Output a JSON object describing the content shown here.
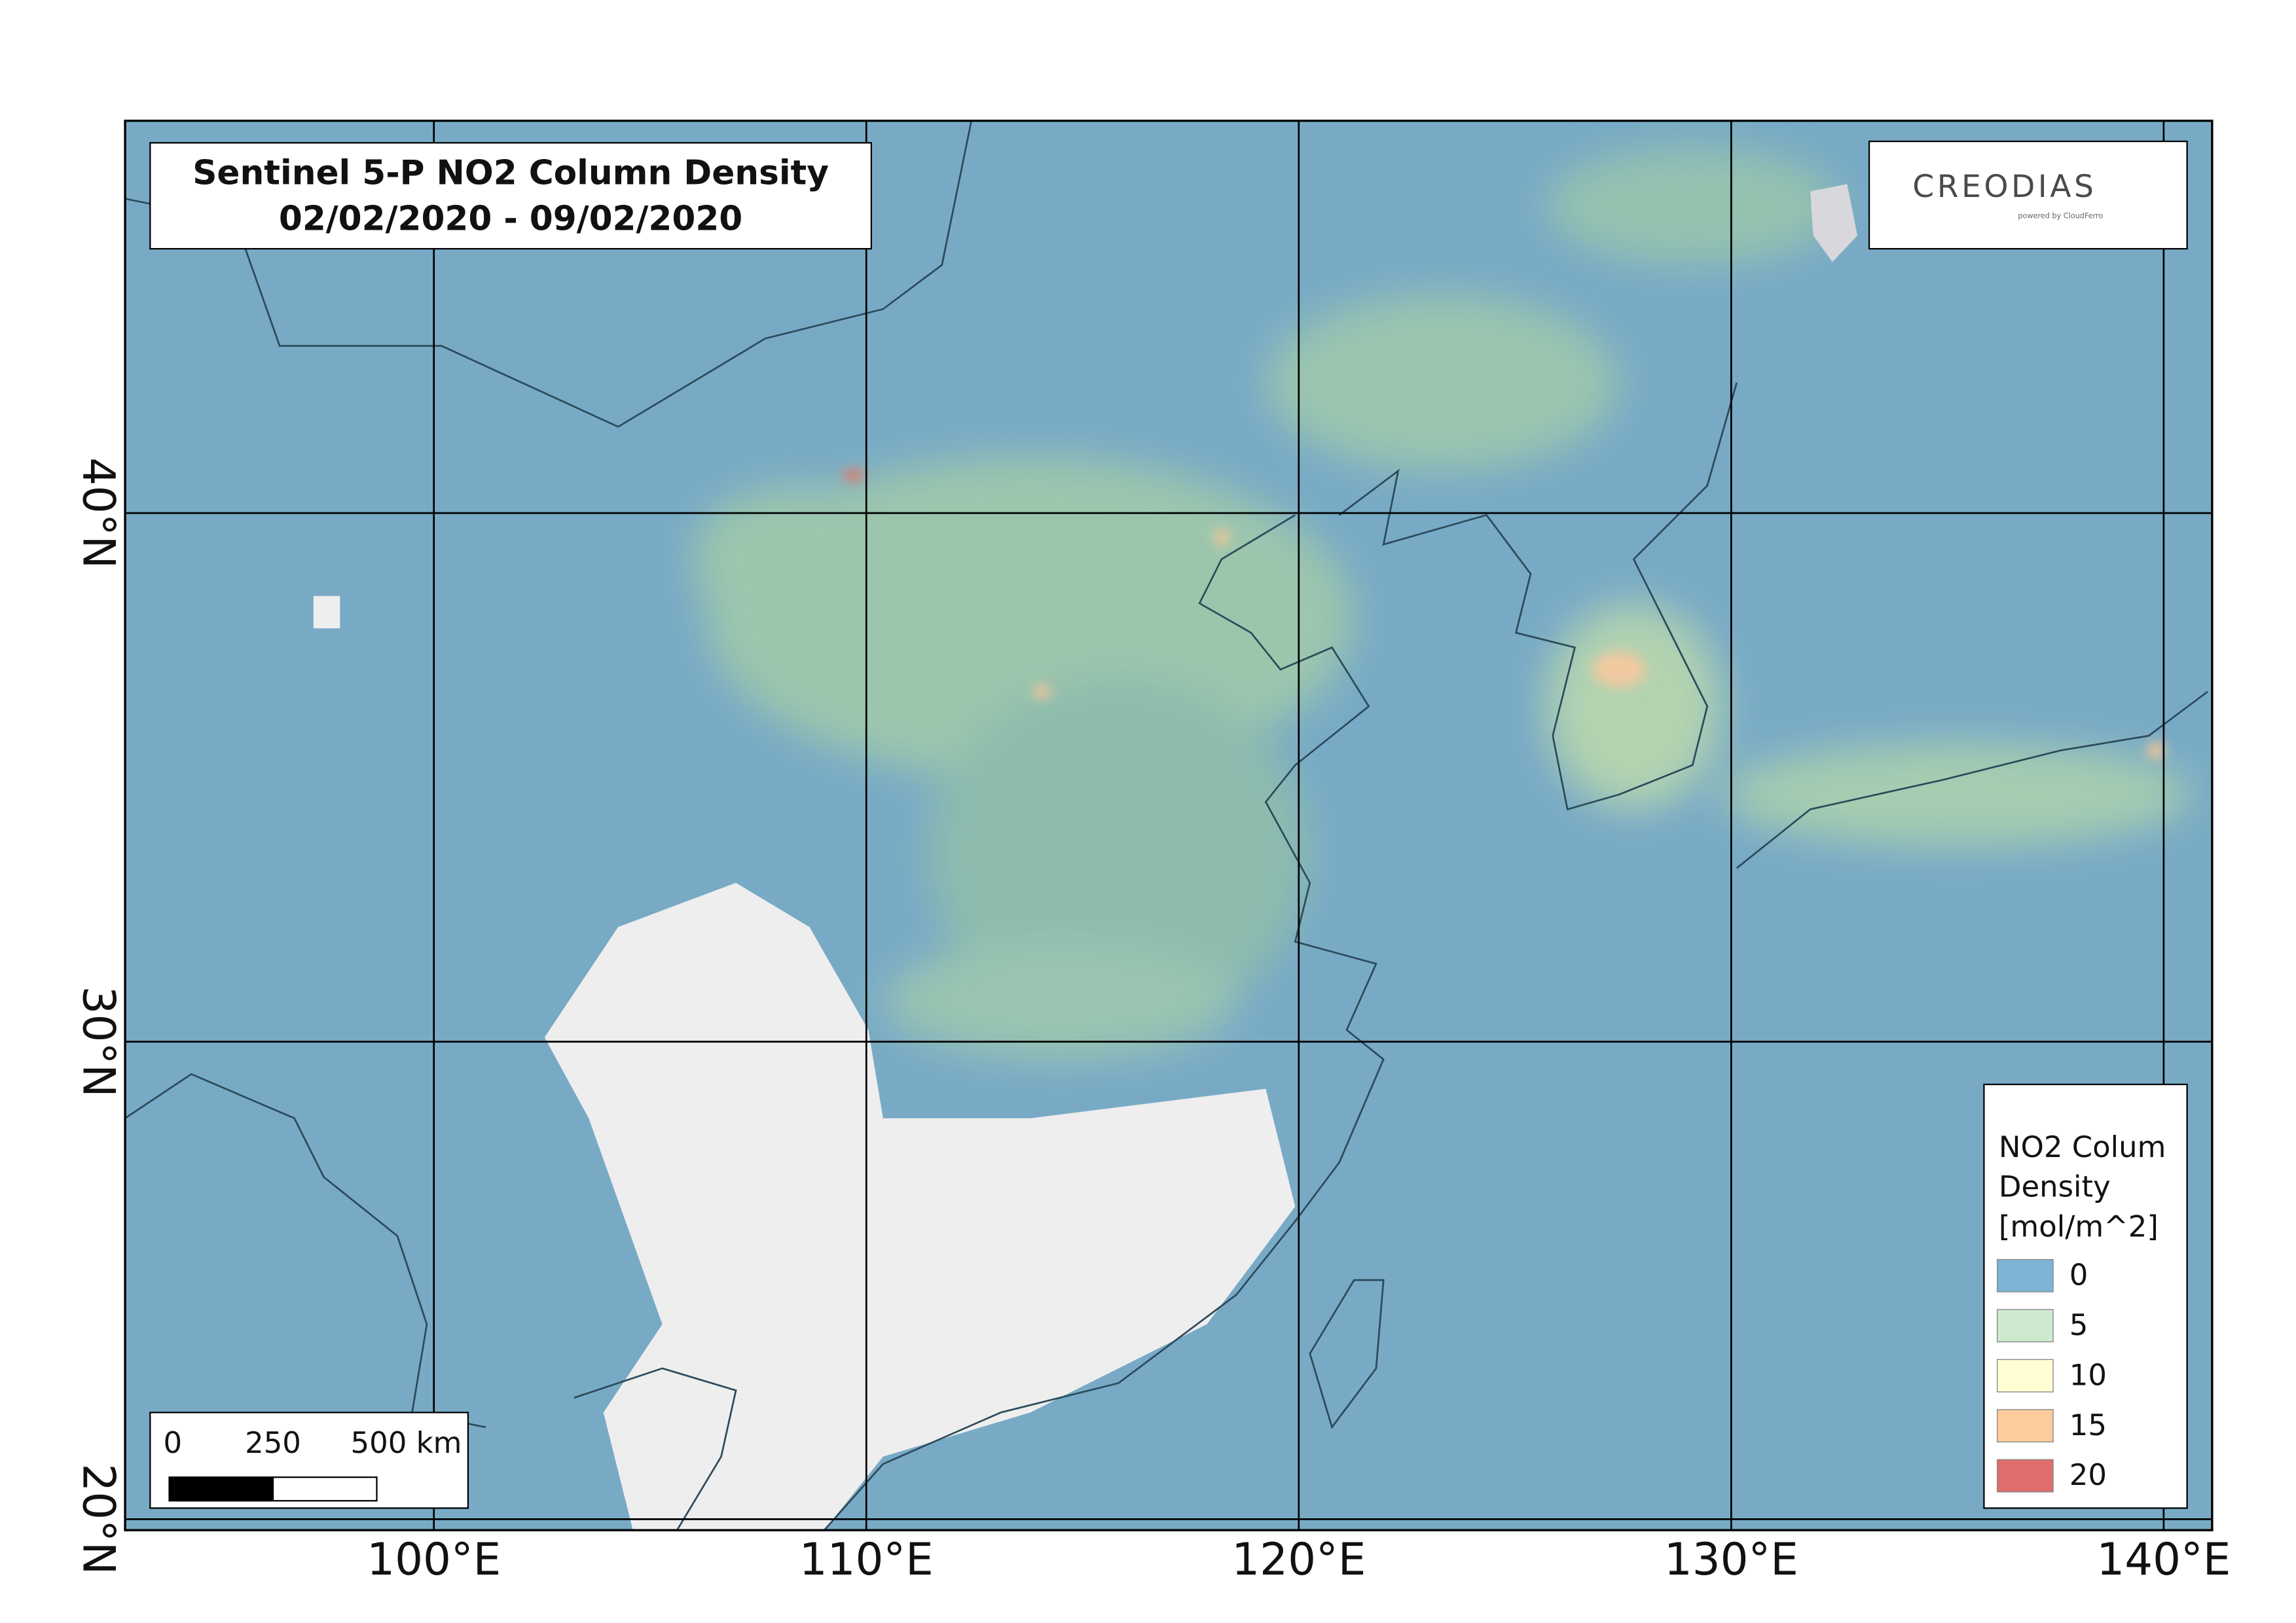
{
  "map": {
    "title": [
      "Sentinel 5-P NO2 Column Density",
      "02/02/2020 - 09/02/2020"
    ],
    "logo": {
      "name": "CREODIAS",
      "tagline": "powered by CloudFerro"
    },
    "xlim": [
      92.86,
      141.12
    ],
    "ylim": [
      19.76,
      46.6
    ],
    "xticks": [
      {
        "value": 100,
        "label": "100°E"
      },
      {
        "value": 110,
        "label": "110°E"
      },
      {
        "value": 120,
        "label": "120°E"
      },
      {
        "value": 130,
        "label": "130°E"
      },
      {
        "value": 140,
        "label": "140°E"
      }
    ],
    "yticks": [
      {
        "value": 20,
        "label": "20°N"
      },
      {
        "value": 30,
        "label": "30°N"
      },
      {
        "value": 40,
        "label": "40°N"
      }
    ],
    "legend": {
      "title": [
        "NO2 Colum",
        "Density",
        "[mol/m^2]"
      ],
      "items": [
        {
          "value": 0,
          "color": "#7fb3d5"
        },
        {
          "value": 5,
          "color": "#cfe9cf"
        },
        {
          "value": 10,
          "color": "#fffed2"
        },
        {
          "value": 15,
          "color": "#fdcc9c"
        },
        {
          "value": 20,
          "color": "#e06c6c"
        }
      ]
    },
    "scale_bar": {
      "ticks": [
        0,
        250,
        {
          "value": 500,
          "label": "500 km"
        }
      ]
    }
  }
}
